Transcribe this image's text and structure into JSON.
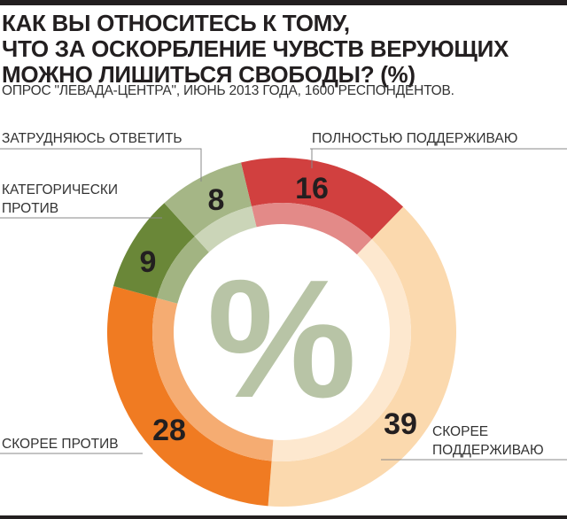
{
  "chart_data": {
    "type": "pie",
    "title": "КАК ВЫ ОТНОСИТЕСЬ К ТОМУ,\nЧТО ЗА ОСКОРБЛЕНИЕ ЧУВСТВ ВЕРУЮЩИХ\nМОЖНО ЛИШИТЬСЯ СВОБОДЫ? (%)",
    "subtitle": "ОПРОС \"ЛЕВАДА-ЦЕНТРА\", ИЮНЬ 2013 ГОДА, 1600 РЕСПОНДЕНТОВ.",
    "center_symbol": "%",
    "donut": true,
    "slices": [
      {
        "label": "ПОЛНОСТЬЮ ПОДДЕРЖИВАЮ",
        "value": 16,
        "color": "#d1403f",
        "inner_color": "#e38a88"
      },
      {
        "label": "СКОРЕЕ ПОДДЕРЖИВАЮ",
        "value": 39,
        "color": "#fbd9ae",
        "inner_color": "#fde8cf"
      },
      {
        "label": "СКОРЕЕ ПРОТИВ",
        "value": 28,
        "color": "#f07b22",
        "inner_color": "#f5ac72"
      },
      {
        "label": "КАТЕГОРИЧЕСКИ ПРОТИВ",
        "value": 9,
        "color": "#6a8738",
        "inner_color": "#a2b482"
      },
      {
        "label": "ЗАТРУДНЯЮСЬ ОТВЕТИТЬ",
        "value": 8,
        "color": "#a5b686",
        "inner_color": "#cbd5b8"
      }
    ]
  }
}
